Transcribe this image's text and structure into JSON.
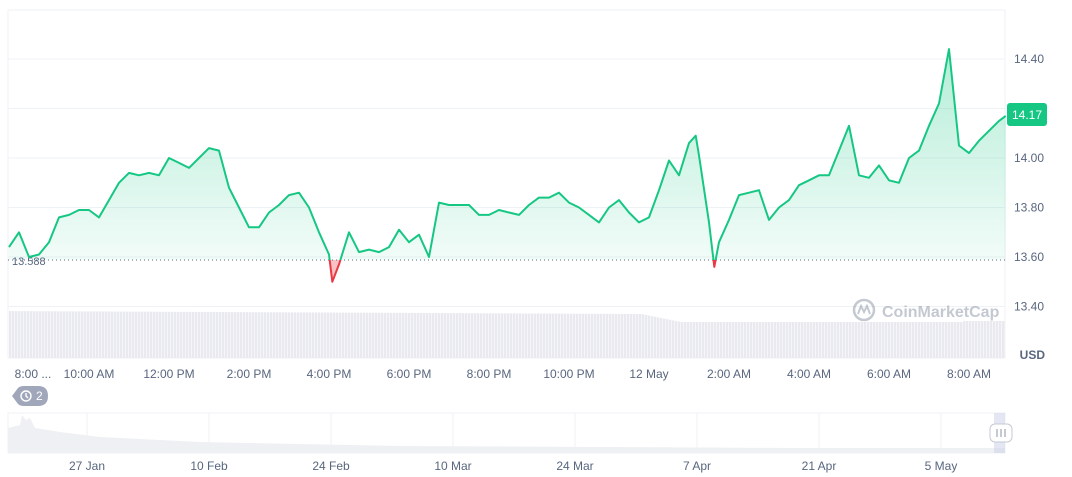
{
  "chart_data": {
    "type": "line",
    "currency_label": "USD",
    "watermark": "CoinMarketCap",
    "reference_value": 13.588,
    "reference_label": "13.588",
    "current_value_label": "14.17",
    "ylim": [
      13.32,
      14.5
    ],
    "yticks": [
      "14.40",
      "14.00",
      "13.80",
      "13.60",
      "13.40"
    ],
    "ytick_values": [
      14.4,
      14.0,
      13.8,
      13.6,
      13.4
    ],
    "xtick_labels": [
      "8:00 ...",
      "10:00 AM",
      "12:00 PM",
      "2:00 PM",
      "4:00 PM",
      "6:00 PM",
      "8:00 PM",
      "10:00 PM",
      "12 May",
      "2:00 AM",
      "4:00 AM",
      "6:00 AM",
      "8:00 AM"
    ],
    "navigator_labels": [
      "27 Jan",
      "10 Feb",
      "24 Feb",
      "10 Mar",
      "24 Mar",
      "7 Apr",
      "21 Apr",
      "5 May"
    ],
    "grid": true,
    "colors": {
      "up": "#16c784",
      "down": "#ea3943",
      "badge": "#16c784"
    },
    "series": [
      {
        "points": [
          [
            "08:00",
            13.64
          ],
          [
            "08:15",
            13.7
          ],
          [
            "08:30",
            13.6
          ],
          [
            "08:45",
            13.61
          ],
          [
            "09:00",
            13.66
          ],
          [
            "09:15",
            13.76
          ],
          [
            "09:30",
            13.77
          ],
          [
            "09:45",
            13.79
          ],
          [
            "10:00",
            13.79
          ],
          [
            "10:15",
            13.76
          ],
          [
            "10:30",
            13.83
          ],
          [
            "10:45",
            13.9
          ],
          [
            "11:00",
            13.94
          ],
          [
            "11:15",
            13.93
          ],
          [
            "11:30",
            13.94
          ],
          [
            "11:45",
            13.93
          ],
          [
            "12:00",
            14.0
          ],
          [
            "12:15",
            13.98
          ],
          [
            "12:30",
            13.96
          ],
          [
            "12:45",
            14.0
          ],
          [
            "13:00",
            14.04
          ],
          [
            "13:15",
            14.03
          ],
          [
            "13:30",
            13.88
          ],
          [
            "13:45",
            13.8
          ],
          [
            "14:00",
            13.72
          ],
          [
            "14:15",
            13.72
          ],
          [
            "14:30",
            13.78
          ],
          [
            "14:45",
            13.81
          ],
          [
            "15:00",
            13.85
          ],
          [
            "15:15",
            13.86
          ],
          [
            "15:30",
            13.8
          ],
          [
            "15:45",
            13.7
          ],
          [
            "16:00",
            13.61
          ],
          [
            "16:05",
            13.5
          ],
          [
            "16:15",
            13.57
          ],
          [
            "16:30",
            13.7
          ],
          [
            "16:45",
            13.62
          ],
          [
            "17:00",
            13.63
          ],
          [
            "17:15",
            13.62
          ],
          [
            "17:30",
            13.64
          ],
          [
            "17:45",
            13.71
          ],
          [
            "18:00",
            13.66
          ],
          [
            "18:15",
            13.69
          ],
          [
            "18:30",
            13.6
          ],
          [
            "18:45",
            13.82
          ],
          [
            "19:00",
            13.81
          ],
          [
            "19:15",
            13.81
          ],
          [
            "19:30",
            13.81
          ],
          [
            "19:45",
            13.77
          ],
          [
            "20:00",
            13.77
          ],
          [
            "20:15",
            13.79
          ],
          [
            "20:30",
            13.78
          ],
          [
            "20:45",
            13.77
          ],
          [
            "21:00",
            13.81
          ],
          [
            "21:15",
            13.84
          ],
          [
            "21:30",
            13.84
          ],
          [
            "21:45",
            13.86
          ],
          [
            "22:00",
            13.82
          ],
          [
            "22:15",
            13.8
          ],
          [
            "22:30",
            13.77
          ],
          [
            "22:45",
            13.74
          ],
          [
            "23:00",
            13.8
          ],
          [
            "23:15",
            13.83
          ],
          [
            "23:30",
            13.78
          ],
          [
            "23:45",
            13.74
          ],
          [
            "00:00",
            13.76
          ],
          [
            "00:15",
            13.87
          ],
          [
            "00:30",
            13.99
          ],
          [
            "00:45",
            13.93
          ],
          [
            "01:00",
            14.06
          ],
          [
            "01:10",
            14.09
          ],
          [
            "01:15",
            14.01
          ],
          [
            "01:30",
            13.74
          ],
          [
            "01:38",
            13.56
          ],
          [
            "01:45",
            13.66
          ],
          [
            "02:00",
            13.75
          ],
          [
            "02:15",
            13.85
          ],
          [
            "02:30",
            13.86
          ],
          [
            "02:45",
            13.87
          ],
          [
            "03:00",
            13.75
          ],
          [
            "03:15",
            13.8
          ],
          [
            "03:30",
            13.83
          ],
          [
            "03:45",
            13.89
          ],
          [
            "04:00",
            13.91
          ],
          [
            "04:15",
            13.93
          ],
          [
            "04:30",
            13.93
          ],
          [
            "04:45",
            14.03
          ],
          [
            "05:00",
            14.13
          ],
          [
            "05:15",
            13.93
          ],
          [
            "05:30",
            13.92
          ],
          [
            "05:45",
            13.97
          ],
          [
            "06:00",
            13.91
          ],
          [
            "06:15",
            13.9
          ],
          [
            "06:30",
            14.0
          ],
          [
            "06:45",
            14.03
          ],
          [
            "07:00",
            14.13
          ],
          [
            "07:15",
            14.22
          ],
          [
            "07:30",
            14.44
          ],
          [
            "07:45",
            14.05
          ],
          [
            "08:00",
            14.02
          ],
          [
            "08:15",
            14.07
          ],
          [
            "08:30",
            14.11
          ],
          [
            "08:45",
            14.15
          ],
          [
            "08:55",
            14.17
          ]
        ]
      }
    ]
  },
  "history_badge": {
    "icon": "history-icon",
    "count": "2"
  }
}
